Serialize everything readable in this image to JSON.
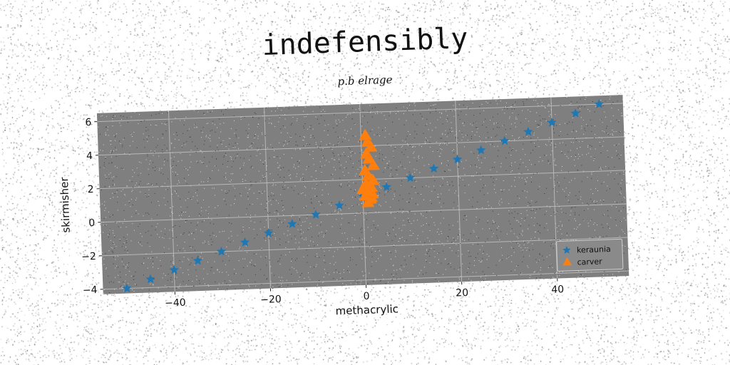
{
  "chart_data": {
    "type": "scatter",
    "title": "indefensibly",
    "subtitle": "p.b elrage",
    "xlabel": "methacrylic",
    "ylabel": "skirmisher",
    "xlim": [
      -55,
      55
    ],
    "ylim": [
      -4.3,
      6.5
    ],
    "xticks": [
      -40,
      -20,
      0,
      20,
      40
    ],
    "xtick_labels": [
      "−40",
      "−20",
      "0",
      "20",
      "40"
    ],
    "yticks": [
      -4,
      -2,
      0,
      2,
      4,
      6
    ],
    "ytick_labels": [
      "−4",
      "−2",
      "0",
      "2",
      "4",
      "6"
    ],
    "grid": true,
    "legend_position": "lower-right",
    "series": [
      {
        "name": "keraunia",
        "marker": "star",
        "color": "#1f77b4",
        "x": [
          -50,
          -45,
          -40,
          -35,
          -30,
          -25,
          -20,
          -15,
          -10,
          -5,
          0,
          5,
          10,
          15,
          20,
          25,
          30,
          35,
          40,
          45,
          50
        ],
        "y": [
          -4.0,
          -3.5,
          -3.0,
          -2.5,
          -2.0,
          -1.5,
          -1.0,
          -0.5,
          0.0,
          0.5,
          1.0,
          1.5,
          2.0,
          2.5,
          3.0,
          3.5,
          4.0,
          4.5,
          5.0,
          5.5,
          6.0
        ]
      },
      {
        "name": "carver",
        "marker": "triangle",
        "color": "#ff7f0e",
        "x": [
          1.0,
          1.5,
          0.5,
          2.0,
          1.0,
          1.8,
          0.8,
          2.2,
          1.2,
          0.6,
          2.4,
          1.5,
          1.0,
          2.0,
          1.3,
          0.0,
          1.7,
          0.9
        ],
        "y": [
          0.6,
          0.8,
          1.0,
          1.1,
          1.3,
          1.5,
          1.7,
          1.9,
          2.2,
          2.5,
          2.8,
          3.2,
          3.5,
          3.9,
          4.2,
          1.4,
          0.9,
          4.6
        ]
      }
    ]
  }
}
